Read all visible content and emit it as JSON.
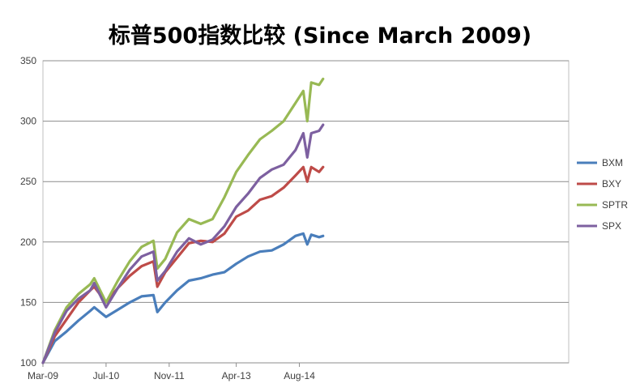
{
  "chart_data": {
    "type": "line",
    "title": "标普500指数比较 (Since March 2009)",
    "xlabel": "",
    "ylabel": "",
    "ylim": [
      100,
      350
    ],
    "y_ticks": [
      100,
      150,
      200,
      250,
      300,
      350
    ],
    "x_ticks": [
      "Mar-09",
      "Jul-10",
      "Nov-11",
      "Apr-13",
      "Aug-14"
    ],
    "x_range": [
      "2009-03",
      "2015-02"
    ],
    "grid": true,
    "legend_position": "right",
    "x": [
      "2009-03",
      "2009-06",
      "2009-09",
      "2009-12",
      "2010-03",
      "2010-04",
      "2010-07",
      "2010-10",
      "2011-01",
      "2011-04",
      "2011-07",
      "2011-08",
      "2011-10",
      "2012-01",
      "2012-04",
      "2012-07",
      "2012-10",
      "2013-01",
      "2013-04",
      "2013-07",
      "2013-10",
      "2014-01",
      "2014-04",
      "2014-07",
      "2014-09",
      "2014-10",
      "2014-11",
      "2015-01",
      "2015-02"
    ],
    "series": [
      {
        "name": "BXM",
        "color": "#4a7ebb",
        "values": [
          100,
          118,
          126,
          135,
          143,
          146,
          138,
          144,
          150,
          155,
          156,
          142,
          150,
          160,
          168,
          170,
          173,
          175,
          182,
          188,
          192,
          193,
          198,
          205,
          207,
          198,
          206,
          204,
          205
        ]
      },
      {
        "name": "BXY",
        "color": "#be4b48",
        "values": [
          100,
          122,
          136,
          150,
          160,
          163,
          150,
          162,
          172,
          180,
          184,
          163,
          175,
          187,
          199,
          201,
          200,
          207,
          221,
          226,
          235,
          238,
          245,
          255,
          262,
          250,
          262,
          258,
          262
        ]
      },
      {
        "name": "SPTR",
        "color": "#98b954",
        "values": [
          100,
          127,
          146,
          157,
          165,
          170,
          150,
          168,
          184,
          196,
          201,
          178,
          186,
          208,
          219,
          215,
          219,
          237,
          258,
          272,
          285,
          292,
          300,
          315,
          325,
          300,
          332,
          330,
          335
        ]
      },
      {
        "name": "SPX",
        "color": "#7d60a0",
        "values": [
          100,
          125,
          143,
          153,
          160,
          166,
          146,
          162,
          177,
          188,
          192,
          168,
          176,
          192,
          203,
          198,
          202,
          213,
          229,
          240,
          253,
          260,
          264,
          276,
          290,
          270,
          290,
          292,
          297
        ]
      }
    ]
  }
}
